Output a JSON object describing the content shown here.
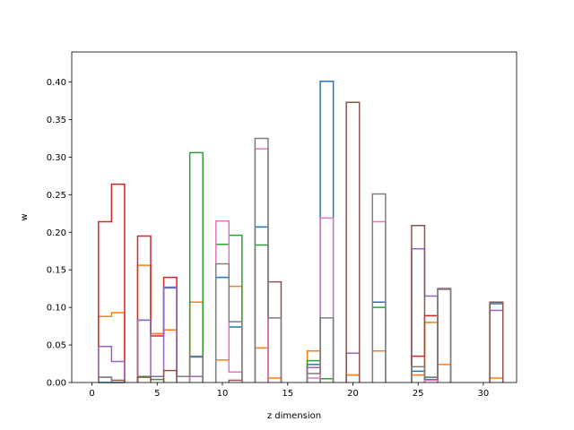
{
  "chart_data": {
    "type": "bar",
    "style": "step-outline histogram",
    "xlabel": "z dimension",
    "ylabel": "w",
    "xlim": [
      -1.55,
      32.55
    ],
    "ylim": [
      0,
      0.44
    ],
    "xticks": [
      0,
      5,
      10,
      15,
      20,
      25,
      30
    ],
    "yticks": [
      0.0,
      0.05,
      0.1,
      0.15,
      0.2,
      0.25,
      0.3,
      0.35,
      0.4
    ],
    "ytick_labels": [
      "0.00",
      "0.05",
      "0.10",
      "0.15",
      "0.20",
      "0.25",
      "0.30",
      "0.35",
      "0.40"
    ],
    "grid": false,
    "bin_width": 1,
    "series": [
      {
        "color": "#1f77b4",
        "bins": [
          [
            1,
            0
          ],
          [
            2,
            0
          ],
          [
            4,
            0.083
          ],
          [
            5,
            0.065
          ],
          [
            6,
            0.126
          ],
          [
            8,
            0.034
          ],
          [
            10,
            0.14
          ],
          [
            11,
            0.074
          ],
          [
            13,
            0.207
          ],
          [
            17,
            0.024
          ],
          [
            18,
            0.401
          ],
          [
            20,
            0.01
          ],
          [
            22,
            0.107
          ],
          [
            25,
            0.015
          ],
          [
            26,
            0.004
          ],
          [
            31,
            0.105
          ]
        ]
      },
      {
        "color": "#ff7f0e",
        "bins": [
          [
            1,
            0.088
          ],
          [
            2,
            0.093
          ],
          [
            4,
            0.156
          ],
          [
            5,
            0.065
          ],
          [
            6,
            0.07
          ],
          [
            8,
            0.107
          ],
          [
            10,
            0.03
          ],
          [
            11,
            0.128
          ],
          [
            13,
            0.046
          ],
          [
            14,
            0.006
          ],
          [
            17,
            0.042
          ],
          [
            20,
            0.01
          ],
          [
            22,
            0.042
          ],
          [
            25,
            0.01
          ],
          [
            26,
            0.08
          ],
          [
            27,
            0.024
          ],
          [
            31,
            0.006
          ]
        ]
      },
      {
        "color": "#2ca02c",
        "bins": [
          [
            4,
            0.008
          ],
          [
            5,
            0.004
          ],
          [
            8,
            0.306
          ],
          [
            10,
            0.184
          ],
          [
            11,
            0.196
          ],
          [
            13,
            0.183
          ],
          [
            17,
            0.029
          ],
          [
            18,
            0.005
          ],
          [
            22,
            0.1
          ],
          [
            26,
            0.007
          ]
        ]
      },
      {
        "color": "#d62728",
        "bins": [
          [
            1,
            0.214
          ],
          [
            2,
            0.264
          ],
          [
            4,
            0.195
          ],
          [
            5,
            0.062
          ],
          [
            6,
            0.14
          ],
          [
            25,
            0.035
          ],
          [
            26,
            0.089
          ]
        ]
      },
      {
        "color": "#9467bd",
        "bins": [
          [
            1,
            0.048
          ],
          [
            2,
            0.028
          ],
          [
            4,
            0.083
          ],
          [
            5,
            0.008
          ],
          [
            6,
            0.127
          ],
          [
            8,
            0.008
          ],
          [
            17,
            0.02
          ],
          [
            20,
            0.039
          ],
          [
            25,
            0.178
          ],
          [
            26,
            0.115
          ],
          [
            31,
            0.096
          ]
        ]
      },
      {
        "color": "#8c564b",
        "bins": [
          [
            1,
            0.007
          ],
          [
            2,
            0.003
          ],
          [
            4,
            0.007
          ],
          [
            6,
            0.016
          ],
          [
            11,
            0.003
          ],
          [
            14,
            0.134
          ],
          [
            20,
            0.373
          ],
          [
            25,
            0.209
          ],
          [
            27,
            0.125
          ],
          [
            31,
            0.107
          ]
        ]
      },
      {
        "color": "#e377c2",
        "bins": [
          [
            7,
            0.008
          ],
          [
            10,
            0.215
          ],
          [
            11,
            0.014
          ],
          [
            13,
            0.311
          ],
          [
            17,
            0.006
          ],
          [
            18,
            0.219
          ],
          [
            22,
            0.214
          ],
          [
            26,
            0.003
          ]
        ]
      },
      {
        "color": "#7f7f7f",
        "bins": [
          [
            1,
            0.007
          ],
          [
            7,
            0.008
          ],
          [
            8,
            0.035
          ],
          [
            10,
            0.158
          ],
          [
            11,
            0.081
          ],
          [
            13,
            0.325
          ],
          [
            14,
            0.086
          ],
          [
            17,
            0.012
          ],
          [
            18,
            0.086
          ],
          [
            22,
            0.251
          ],
          [
            25,
            0.021
          ],
          [
            26,
            0.007
          ],
          [
            27,
            0.124
          ]
        ]
      }
    ]
  }
}
